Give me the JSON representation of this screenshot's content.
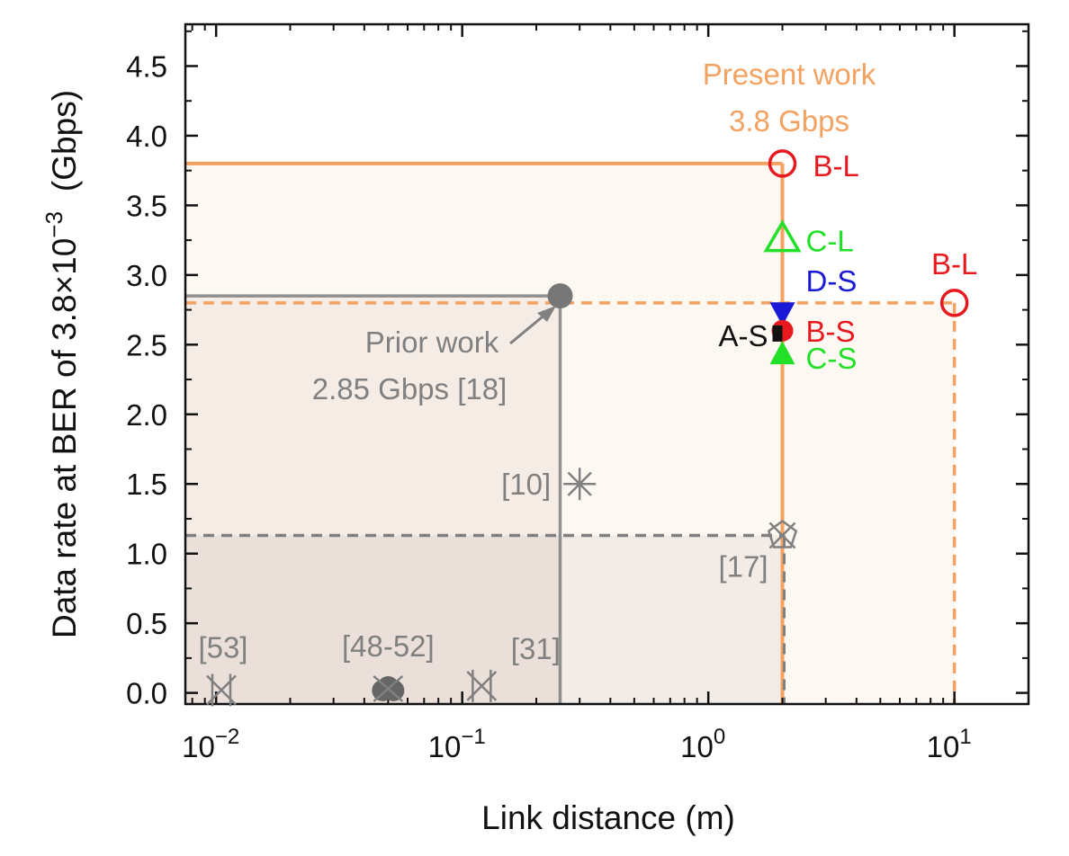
{
  "chart_data": {
    "type": "scatter",
    "xlabel": "Link distance (m)",
    "ylabel_main": "Data rate at BER of 3.8×10",
    "ylabel_exp": "−3",
    "ylabel_unit": "(Gbps)",
    "x_scale": "log",
    "xlim": [
      0.0075,
      20
    ],
    "ylim": [
      -0.08,
      4.8
    ],
    "x_ticks": [
      {
        "value": 0.01,
        "base": "10",
        "exp": "−2"
      },
      {
        "value": 0.1,
        "base": "10",
        "exp": "−1"
      },
      {
        "value": 1,
        "base": "10",
        "exp": "0"
      },
      {
        "value": 10,
        "base": "10",
        "exp": "1"
      }
    ],
    "y_ticks": [
      {
        "value": 0.0,
        "label": "0.0"
      },
      {
        "value": 0.5,
        "label": "0.5"
      },
      {
        "value": 1.0,
        "label": "1.0"
      },
      {
        "value": 1.5,
        "label": "1.5"
      },
      {
        "value": 2.0,
        "label": "2.0"
      },
      {
        "value": 2.5,
        "label": "2.5"
      },
      {
        "value": 3.0,
        "label": "3.0"
      },
      {
        "value": 3.5,
        "label": "3.5"
      },
      {
        "value": 4.0,
        "label": "4.0"
      },
      {
        "value": 4.5,
        "label": "4.5"
      }
    ],
    "grid": false,
    "present_work": {
      "distance": 2,
      "rate": 3.8,
      "label_line1": "Present work",
      "label_line2": "3.8 Gbps",
      "color": "#f4a261",
      "extended": {
        "distance": 10,
        "rate": 2.8
      }
    },
    "prior_work": {
      "distance": 0.25,
      "rate": 2.85,
      "label_line1": "Prior work",
      "label_line2": "2.85 Gbps [18]",
      "color": "#808080"
    },
    "ref17_line": {
      "distance": 2,
      "rate": 1.13
    },
    "series": [
      {
        "name": "B-L",
        "x": 2,
        "y": 3.8,
        "marker": "circle-open",
        "color": "#e8191e"
      },
      {
        "name": "C-L",
        "x": 2,
        "y": 3.26,
        "marker": "triangle-open",
        "color": "#22e028"
      },
      {
        "name": "D-S",
        "x": 2,
        "y": 2.72,
        "marker": "triangle-down-filled",
        "color": "#1a1ad6"
      },
      {
        "name": "B-S",
        "x": 2,
        "y": 2.6,
        "marker": "circle-filled",
        "color": "#e8191e"
      },
      {
        "name": "A-S",
        "x": 2,
        "y": 2.58,
        "marker": "square-filled",
        "color": "#111111"
      },
      {
        "name": "C-S",
        "x": 2,
        "y": 2.43,
        "marker": "triangle-filled",
        "color": "#22e028"
      },
      {
        "name": "B-L",
        "x": 10,
        "y": 2.8,
        "marker": "circle-open",
        "color": "#e8191e"
      }
    ],
    "references": [
      {
        "label": "[10]",
        "x": 0.3,
        "y": 1.5,
        "marker": "asterisk"
      },
      {
        "label": "[17]",
        "x": 2,
        "y": 1.13,
        "marker": "star-x"
      },
      {
        "label": "[53]",
        "x": 0.0105,
        "y": 0.02,
        "marker": "bowtie"
      },
      {
        "label": "[48-52]",
        "x": 0.05,
        "y": 0.03,
        "marker": "cluster"
      },
      {
        "label": "[31]",
        "x": 0.12,
        "y": 0.05,
        "marker": "bowtie"
      }
    ]
  }
}
